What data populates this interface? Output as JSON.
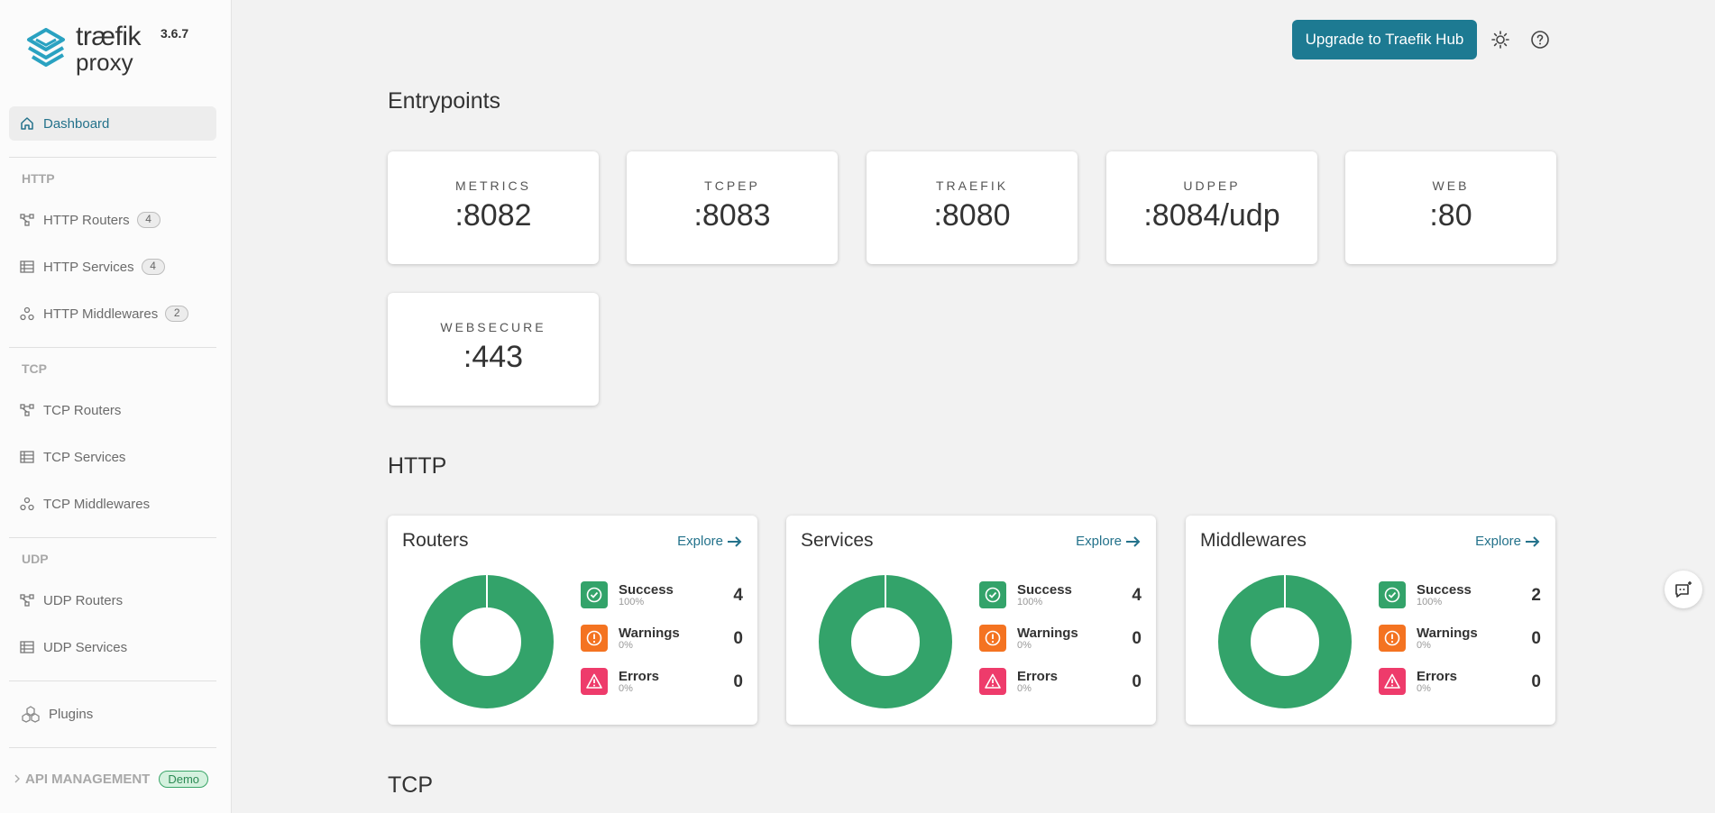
{
  "brand": {
    "name": "træfik",
    "sub": "proxy",
    "version": "3.6.7"
  },
  "sidebar": {
    "dashboard": "Dashboard",
    "sections": {
      "http": "HTTP",
      "tcp": "TCP",
      "udp": "UDP"
    },
    "http_items": [
      {
        "label": "HTTP Routers",
        "count": "4"
      },
      {
        "label": "HTTP Services",
        "count": "4"
      },
      {
        "label": "HTTP Middlewares",
        "count": "2"
      }
    ],
    "tcp_items": [
      {
        "label": "TCP Routers"
      },
      {
        "label": "TCP Services"
      },
      {
        "label": "TCP Middlewares"
      }
    ],
    "udp_items": [
      {
        "label": "UDP Routers"
      },
      {
        "label": "UDP Services"
      }
    ],
    "plugins": "Plugins",
    "api_management": {
      "label": "API MANAGEMENT",
      "badge": "Demo"
    }
  },
  "topbar": {
    "upgrade": "Upgrade to Traefik Hub"
  },
  "main": {
    "entrypoints_title": "Entrypoints",
    "entrypoints": [
      {
        "name": "METRICS",
        "port": ":8082"
      },
      {
        "name": "TCPEP",
        "port": ":8083"
      },
      {
        "name": "TRAEFIK",
        "port": ":8080"
      },
      {
        "name": "UDPEP",
        "port": ":8084/udp"
      },
      {
        "name": "WEB",
        "port": ":80"
      },
      {
        "name": "WEBSECURE",
        "port": ":443"
      }
    ],
    "http_title": "HTTP",
    "tcp_title": "TCP",
    "explore": "Explore",
    "cards": [
      {
        "title": "Routers",
        "success": {
          "label": "Success",
          "pct": "100%",
          "value": "4"
        },
        "warnings": {
          "label": "Warnings",
          "pct": "0%",
          "value": "0"
        },
        "errors": {
          "label": "Errors",
          "pct": "0%",
          "value": "0"
        }
      },
      {
        "title": "Services",
        "success": {
          "label": "Success",
          "pct": "100%",
          "value": "4"
        },
        "warnings": {
          "label": "Warnings",
          "pct": "0%",
          "value": "0"
        },
        "errors": {
          "label": "Errors",
          "pct": "0%",
          "value": "0"
        }
      },
      {
        "title": "Middlewares",
        "success": {
          "label": "Success",
          "pct": "100%",
          "value": "2"
        },
        "warnings": {
          "label": "Warnings",
          "pct": "0%",
          "value": "0"
        },
        "errors": {
          "label": "Errors",
          "pct": "0%",
          "value": "0"
        }
      }
    ]
  },
  "colors": {
    "accent": "#1d7a92",
    "success": "#33a36a",
    "warning": "#f47321",
    "error": "#ee3b6b"
  }
}
